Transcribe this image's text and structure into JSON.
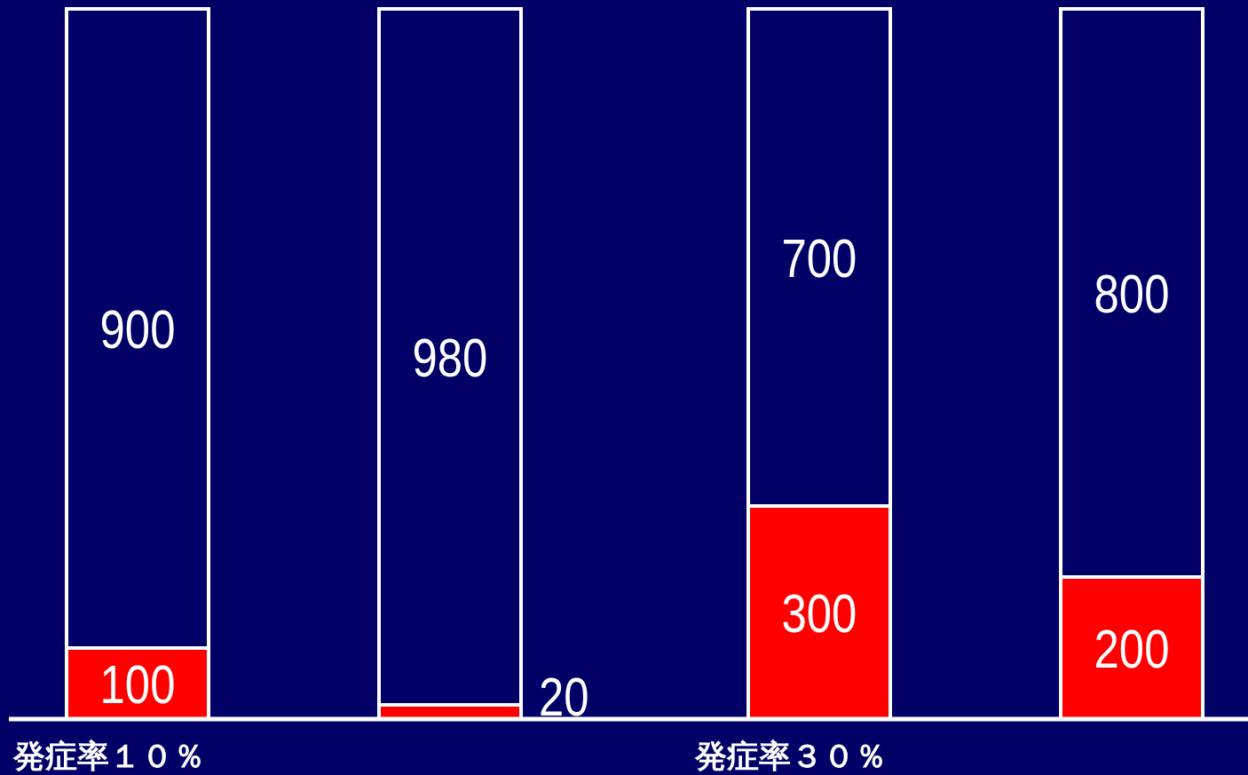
{
  "chart_data": {
    "type": "bar",
    "stacked": true,
    "data_labels": true,
    "categories": [
      "発症率１０％",
      null,
      "発症率３０％",
      null
    ],
    "series": [
      {
        "color": "#ff0000",
        "values": [
          100,
          20,
          300,
          200
        ]
      },
      {
        "color": "#000066",
        "values": [
          900,
          980,
          700,
          800
        ]
      }
    ]
  }
}
